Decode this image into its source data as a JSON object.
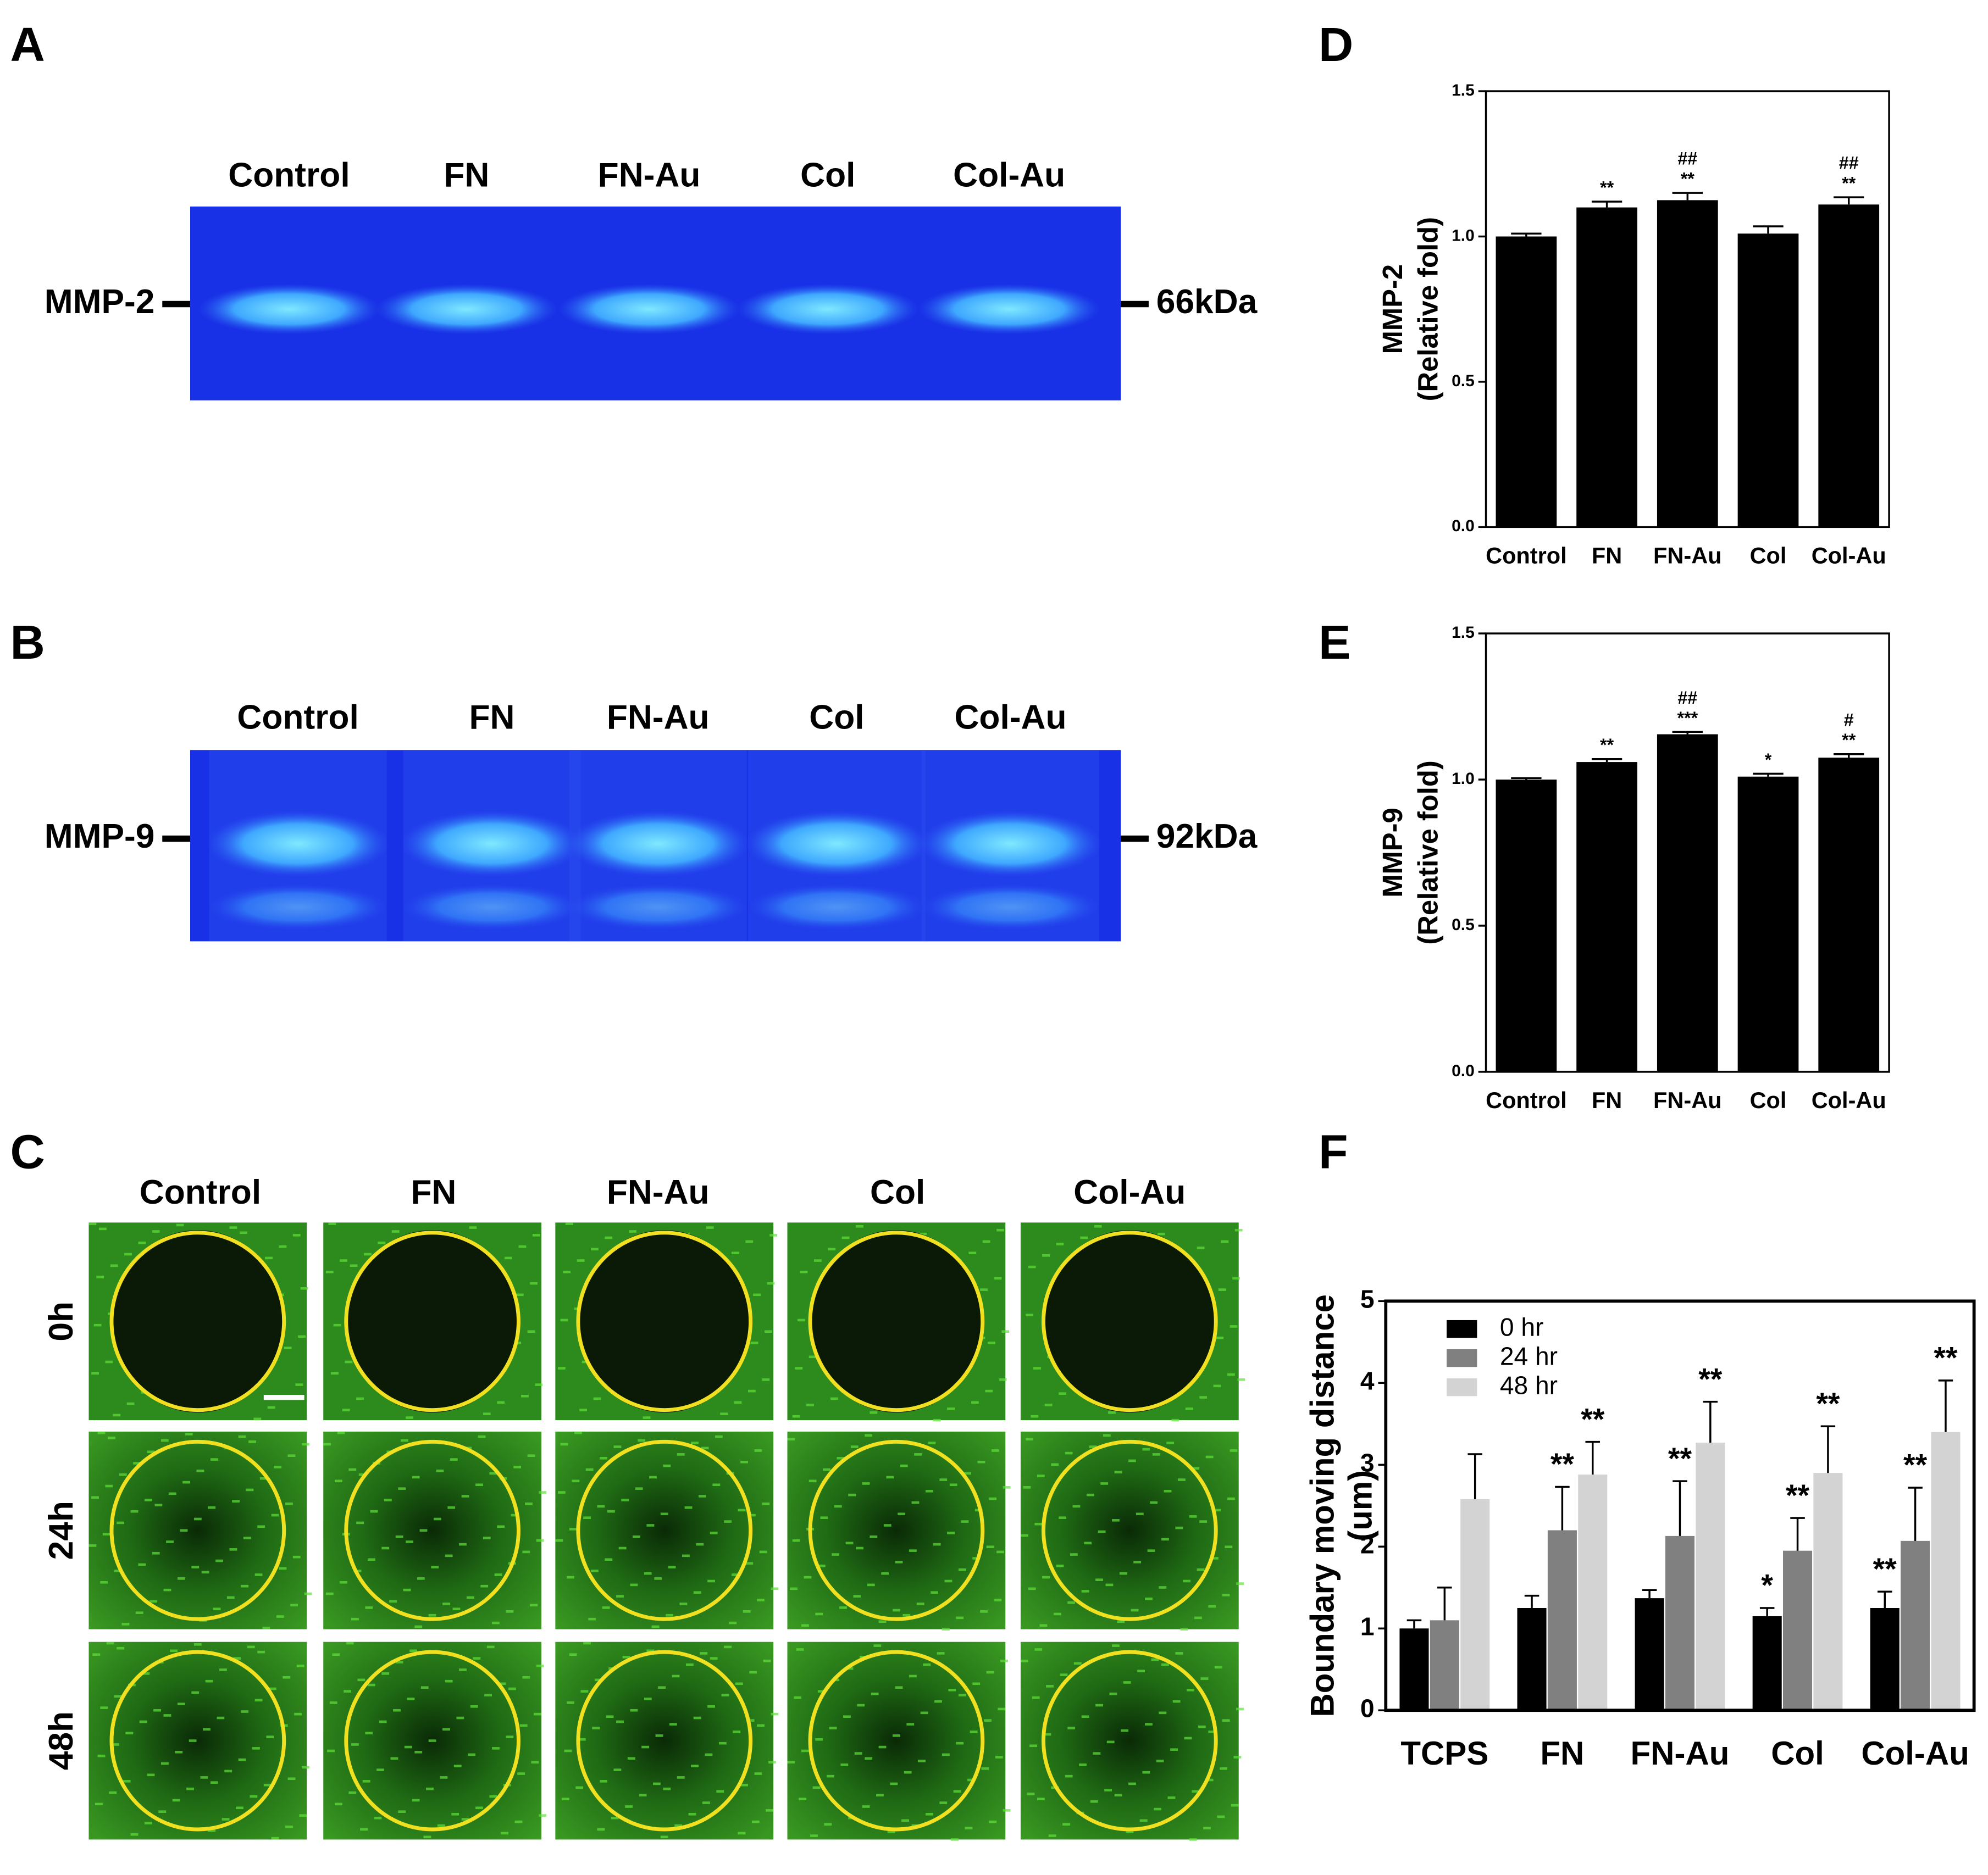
{
  "gels": [
    {
      "label": "A",
      "lanes": [
        "Control",
        "FN",
        "FN-Au",
        "Col",
        "Col-Au"
      ],
      "marker": "MMP-2",
      "size": "66kDa"
    },
    {
      "label": "B",
      "lanes": [
        "Control",
        "FN",
        "FN-Au",
        "Col",
        "Col-Au"
      ],
      "marker": "MMP-9",
      "size": "92kDa"
    }
  ],
  "migration": {
    "label": "C",
    "columns": [
      "Control",
      "FN",
      "FN-Au",
      "Col",
      "Col-Au"
    ],
    "rows": [
      "0h",
      "24h",
      "48h"
    ]
  },
  "chart_data": [
    {
      "type": "bar",
      "label": "D",
      "ylabel": [
        "MMP-2",
        "(Relative fold)"
      ],
      "categories": [
        "Control",
        "FN",
        "FN-Au",
        "Col",
        "Col-Au"
      ],
      "values": [
        1.0,
        1.1,
        1.125,
        1.01,
        1.11
      ],
      "errors": [
        0.01,
        0.02,
        0.025,
        0.025,
        0.025
      ],
      "significance": [
        null,
        [
          "**"
        ],
        [
          "##",
          "**"
        ],
        null,
        [
          "##",
          "**"
        ]
      ],
      "color": "#000000",
      "ylim": [
        0,
        1.5
      ],
      "yticks": [
        {
          "value": 0,
          "label": "0.0"
        },
        {
          "value": 0.5,
          "label": "0.5"
        },
        {
          "value": 1,
          "label": "1.0"
        },
        {
          "value": 1.5,
          "label": "1.5"
        }
      ]
    },
    {
      "type": "bar",
      "label": "E",
      "ylabel": [
        "MMP-9",
        "(Relative fold)"
      ],
      "categories": [
        "Control",
        "FN",
        "FN-Au",
        "Col",
        "Col-Au"
      ],
      "values": [
        1.0,
        1.06,
        1.155,
        1.01,
        1.075
      ],
      "errors": [
        0.005,
        0.01,
        0.008,
        0.01,
        0.012
      ],
      "significance": [
        null,
        [
          "**"
        ],
        [
          "##",
          "***"
        ],
        [
          "*"
        ],
        [
          "#",
          "**"
        ]
      ],
      "color": "#000000",
      "ylim": [
        0,
        1.5
      ],
      "yticks": [
        {
          "value": 0,
          "label": "0.0"
        },
        {
          "value": 0.5,
          "label": "0.5"
        },
        {
          "value": 1,
          "label": "1.0"
        },
        {
          "value": 1.5,
          "label": "1.5"
        }
      ]
    },
    {
      "type": "bar",
      "label": "F",
      "ylabel": [
        "Boundary moving distance",
        "(um)"
      ],
      "categories": [
        "TCPS",
        "FN",
        "FN-Au",
        "Col",
        "Col-Au"
      ],
      "series": [
        {
          "name": "0 hr",
          "color": "#000000",
          "values": [
            1.0,
            1.25,
            1.37,
            1.15,
            1.25
          ],
          "errors": [
            0.1,
            0.15,
            0.1,
            0.1,
            0.2
          ],
          "significance": [
            null,
            null,
            null,
            [
              "*"
            ],
            [
              "**"
            ]
          ]
        },
        {
          "name": "24 hr",
          "color": "#808080",
          "values": [
            1.1,
            2.2,
            2.13,
            1.95,
            2.07
          ],
          "errors": [
            0.4,
            0.53,
            0.67,
            0.4,
            0.65
          ],
          "significance": [
            null,
            [
              "**"
            ],
            [
              "**"
            ],
            [
              "**"
            ],
            [
              "**"
            ]
          ]
        },
        {
          "name": "48 hr",
          "color": "#d3d3d3",
          "values": [
            2.58,
            2.88,
            3.27,
            2.9,
            3.4
          ],
          "errors": [
            0.55,
            0.4,
            0.5,
            0.57,
            0.63
          ],
          "significance": [
            null,
            [
              "**"
            ],
            [
              "**"
            ],
            [
              "**"
            ],
            [
              "**"
            ]
          ]
        }
      ],
      "ylim": [
        0,
        5
      ],
      "yticks": [
        0,
        1,
        2,
        3,
        4,
        5
      ],
      "legend": "upper-left"
    }
  ]
}
